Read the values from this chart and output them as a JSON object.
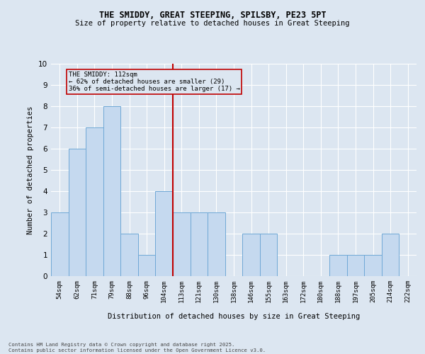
{
  "title1": "THE SMIDDY, GREAT STEEPING, SPILSBY, PE23 5PT",
  "title2": "Size of property relative to detached houses in Great Steeping",
  "xlabel": "Distribution of detached houses by size in Great Steeping",
  "ylabel": "Number of detached properties",
  "categories": [
    "54sqm",
    "62sqm",
    "71sqm",
    "79sqm",
    "88sqm",
    "96sqm",
    "104sqm",
    "113sqm",
    "121sqm",
    "130sqm",
    "138sqm",
    "146sqm",
    "155sqm",
    "163sqm",
    "172sqm",
    "180sqm",
    "188sqm",
    "197sqm",
    "205sqm",
    "214sqm",
    "222sqm"
  ],
  "values": [
    3,
    6,
    7,
    8,
    2,
    1,
    4,
    3,
    3,
    3,
    0,
    2,
    2,
    0,
    0,
    0,
    1,
    1,
    1,
    2,
    0
  ],
  "bar_color": "#c5d9ef",
  "bar_edge_color": "#6fa8d6",
  "marker_index": 7,
  "marker_color": "#c00000",
  "annotation_title": "THE SMIDDY: 112sqm",
  "annotation_line1": "← 62% of detached houses are smaller (29)",
  "annotation_line2": "36% of semi-detached houses are larger (17) →",
  "ylim": [
    0,
    10
  ],
  "yticks": [
    0,
    1,
    2,
    3,
    4,
    5,
    6,
    7,
    8,
    9,
    10
  ],
  "background_color": "#dce6f1",
  "footnote1": "Contains HM Land Registry data © Crown copyright and database right 2025.",
  "footnote2": "Contains public sector information licensed under the Open Government Licence v3.0."
}
